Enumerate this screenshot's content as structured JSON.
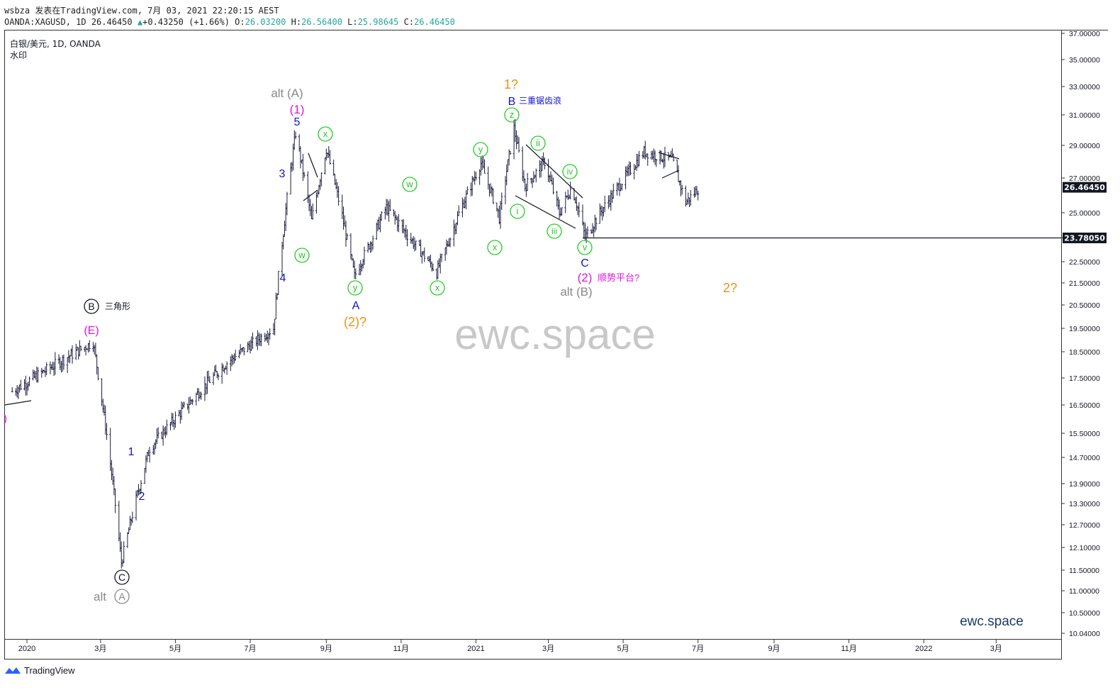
{
  "header": {
    "author_line": "wsbza 发表在TradingView.com, 7月 03, 2021 22:20:15 AEST",
    "symbol": "OANDA:XAGUSD, 1D",
    "last": "26.46450",
    "change": "+0.43250 (+1.66%)",
    "o_label": "O:",
    "o": "26.03200",
    "h_label": "H:",
    "h": "26.56400",
    "l_label": "L:",
    "l": "25.98645",
    "c_label": "C:",
    "c": "26.46450"
  },
  "legend": {
    "title": "白银/美元, 1D, OANDA",
    "subtitle": "水印"
  },
  "watermark": "ewc.space",
  "brand_corner": "ewc.space",
  "footer": {
    "logo": "tradingview-logo",
    "text": "TradingView"
  },
  "colors": {
    "candle": "#1a1a40",
    "grid": "#eeeeee",
    "blue": "#1414c8",
    "magenta": "#e014e0",
    "green": "#22cc22",
    "orange": "#f09010",
    "gray": "#888888",
    "price_badge": "#131722"
  },
  "chart_data": {
    "type": "candlestick",
    "y_axis": {
      "ticks": [
        "37.00000",
        "35.00000",
        "33.00000",
        "31.00000",
        "29.00000",
        "27.00000",
        "25.00000",
        "23.80000",
        "22.50000",
        "21.50000",
        "20.50000",
        "19.50000",
        "18.50000",
        "17.50000",
        "16.50000",
        "15.50000",
        "14.70000",
        "13.90000",
        "13.30000",
        "12.70000",
        "12.10000",
        "11.50000",
        "11.00000",
        "10.50000",
        "10.04000"
      ],
      "last_price_label": "26.46450",
      "horizontal_line_label": "23.78050",
      "horizontal_line_value": 23.7805
    },
    "x_axis": {
      "ticks": [
        "2020",
        "3月",
        "5月",
        "7月",
        "9月",
        "11月",
        "2021",
        "3月",
        "5月",
        "7月",
        "9月",
        "11月",
        "2022",
        "3月"
      ]
    },
    "key_points": [
      {
        "date": "2019-12-20",
        "price": 17.0
      },
      {
        "date": "2020-02-24",
        "price": 18.9
      },
      {
        "date": "2020-03-18",
        "price": 11.7
      },
      {
        "date": "2020-04-10",
        "price": 15.0
      },
      {
        "date": "2020-06-10",
        "price": 18.0
      },
      {
        "date": "2020-07-20",
        "price": 19.5
      },
      {
        "date": "2020-08-07",
        "price": 29.8
      },
      {
        "date": "2020-08-20",
        "price": 24.6
      },
      {
        "date": "2020-09-01",
        "price": 28.8
      },
      {
        "date": "2020-09-24",
        "price": 21.8
      },
      {
        "date": "2020-10-20",
        "price": 25.3
      },
      {
        "date": "2020-11-30",
        "price": 22.0
      },
      {
        "date": "2021-01-05",
        "price": 27.9
      },
      {
        "date": "2021-01-20",
        "price": 24.8
      },
      {
        "date": "2021-02-01",
        "price": 30.1
      },
      {
        "date": "2021-02-10",
        "price": 26.5
      },
      {
        "date": "2021-02-26",
        "price": 28.0
      },
      {
        "date": "2021-03-10",
        "price": 25.0
      },
      {
        "date": "2021-03-20",
        "price": 26.5
      },
      {
        "date": "2021-03-31",
        "price": 23.8
      },
      {
        "date": "2021-05-18",
        "price": 28.6
      },
      {
        "date": "2021-06-10",
        "price": 28.1
      },
      {
        "date": "2021-06-21",
        "price": 25.6
      },
      {
        "date": "2021-07-02",
        "price": 26.46
      }
    ],
    "annotations": [
      {
        "text": "alt (A)",
        "color": "gray"
      },
      {
        "text": "(1)",
        "color": "magenta"
      },
      {
        "text": "5",
        "color": "blue"
      },
      {
        "text": "3",
        "color": "blue"
      },
      {
        "text": "4",
        "color": "blue"
      },
      {
        "text": "1",
        "color": "blue"
      },
      {
        "text": "2",
        "color": "blue"
      },
      {
        "text": "A",
        "color": "blue"
      },
      {
        "text": "(2)?",
        "color": "orange"
      },
      {
        "text": "1?",
        "color": "orange"
      },
      {
        "text": "B",
        "color": "blue"
      },
      {
        "text": "三重锯齿浪",
        "color": "blue"
      },
      {
        "text": "C",
        "color": "blue"
      },
      {
        "text": "(2)",
        "color": "magenta"
      },
      {
        "text": "顺势平台?",
        "color": "magenta"
      },
      {
        "text": "alt (B)",
        "color": "gray"
      },
      {
        "text": "2?",
        "color": "orange"
      },
      {
        "text": "(E)",
        "color": "magenta"
      },
      {
        "text": "三角形",
        "color": "black"
      },
      {
        "text": "alt",
        "color": "gray"
      },
      {
        "text": ")",
        "color": "magenta"
      }
    ],
    "circled": [
      {
        "text": "B",
        "color": "black"
      },
      {
        "text": "C",
        "color": "black"
      },
      {
        "text": "A",
        "color": "gray"
      },
      {
        "text": "w",
        "color": "green"
      },
      {
        "text": "x",
        "color": "green"
      },
      {
        "text": "y",
        "color": "green"
      },
      {
        "text": "w",
        "color": "green"
      },
      {
        "text": "x",
        "color": "green"
      },
      {
        "text": "y",
        "color": "green"
      },
      {
        "text": "x",
        "color": "green"
      },
      {
        "text": "z",
        "color": "green"
      },
      {
        "text": "i",
        "color": "green"
      },
      {
        "text": "ii",
        "color": "green"
      },
      {
        "text": "iii",
        "color": "green"
      },
      {
        "text": "iv",
        "color": "green"
      },
      {
        "text": "v",
        "color": "green"
      }
    ]
  }
}
